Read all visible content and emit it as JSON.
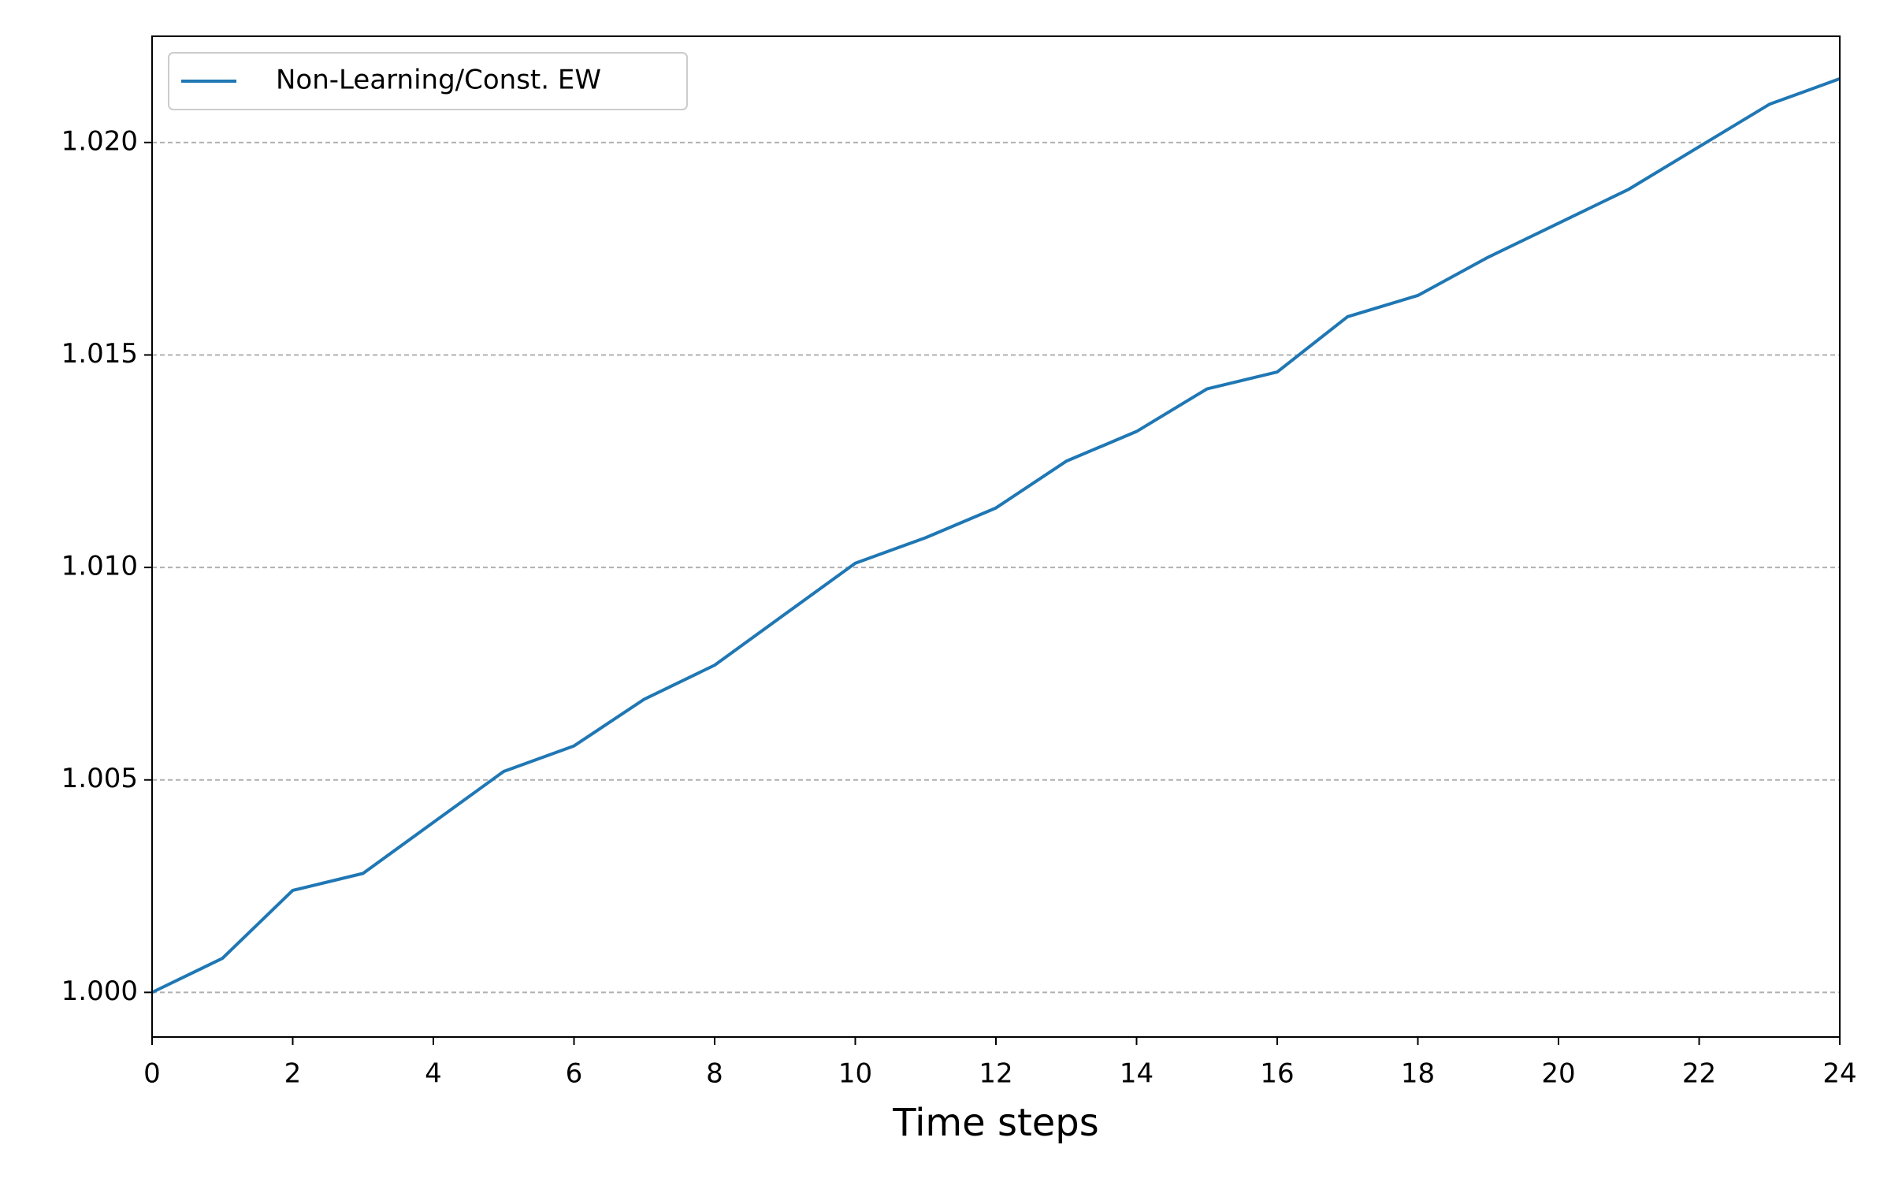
{
  "chart_data": {
    "type": "line",
    "xlabel": "Time steps",
    "x": [
      0,
      1,
      2,
      3,
      4,
      5,
      6,
      7,
      8,
      9,
      10,
      11,
      12,
      13,
      14,
      15,
      16,
      17,
      18,
      19,
      20,
      21,
      22,
      23,
      24
    ],
    "series": [
      {
        "name": "Non-Learning/Const. EW",
        "color": "#1f77b4",
        "values": [
          1.0,
          1.0008,
          1.0024,
          1.0028,
          1.004,
          1.0052,
          1.0058,
          1.0069,
          1.0077,
          1.0089,
          1.0101,
          1.0107,
          1.0114,
          1.0125,
          1.0132,
          1.0142,
          1.0146,
          1.0159,
          1.0164,
          1.0173,
          1.0181,
          1.0189,
          1.0199,
          1.0209,
          1.0215
        ]
      }
    ],
    "xlim": [
      0,
      24
    ],
    "xticks": [
      0,
      2,
      4,
      6,
      8,
      10,
      12,
      14,
      16,
      18,
      20,
      22,
      24
    ],
    "ylim": [
      0.99895,
      1.0225
    ],
    "yticks": [
      {
        "value": 1.0,
        "label": "1.000"
      },
      {
        "value": 1.005,
        "label": "1.005"
      },
      {
        "value": 1.01,
        "label": "1.010"
      },
      {
        "value": 1.015,
        "label": "1.015"
      },
      {
        "value": 1.02,
        "label": "1.020"
      }
    ],
    "grid": true,
    "legend": "upper left"
  }
}
